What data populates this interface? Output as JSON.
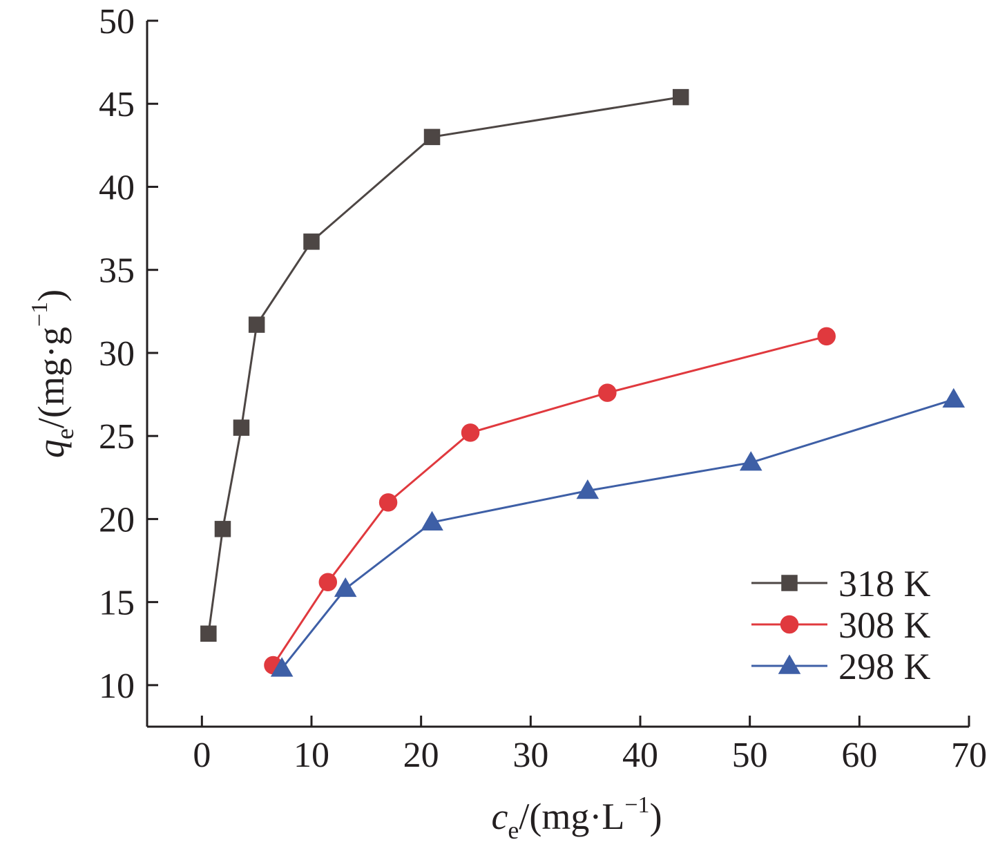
{
  "chart_data": {
    "type": "line",
    "xlabel": {
      "main": "c",
      "sub": "e",
      "rest": "/(mg·L",
      "sup": "−1",
      "close": ")"
    },
    "ylabel": {
      "main": "q",
      "sub": "e",
      "rest": "/(mg·g",
      "sup": "−1",
      "close": ")"
    },
    "xlim": [
      -5,
      70
    ],
    "ylim": [
      7.5,
      50
    ],
    "xticks": [
      "0",
      "10",
      "20",
      "30",
      "40",
      "50",
      "60",
      "70"
    ],
    "yticks": [
      "10",
      "15",
      "20",
      "25",
      "30",
      "35",
      "40",
      "45",
      "50"
    ],
    "grid": false,
    "legend_position": "bottom-right",
    "series": [
      {
        "name": "318 K",
        "marker": "square",
        "color": "#4d4644",
        "x": [
          0.6,
          1.9,
          3.6,
          5.0,
          10.0,
          21.0,
          43.7
        ],
        "y": [
          13.1,
          19.4,
          25.5,
          31.7,
          36.7,
          43.0,
          45.4
        ]
      },
      {
        "name": "308 K",
        "marker": "circle",
        "color": "#e0393e",
        "x": [
          6.5,
          11.5,
          17.0,
          24.5,
          37.0,
          57.0
        ],
        "y": [
          11.2,
          16.2,
          21.0,
          25.2,
          27.6,
          31.0
        ]
      },
      {
        "name": "298 K",
        "marker": "triangle",
        "color": "#3e5fa6",
        "x": [
          7.3,
          13.1,
          21.0,
          35.2,
          50.1,
          68.6
        ],
        "y": [
          11.0,
          15.8,
          19.8,
          21.7,
          23.4,
          27.2
        ]
      }
    ]
  }
}
